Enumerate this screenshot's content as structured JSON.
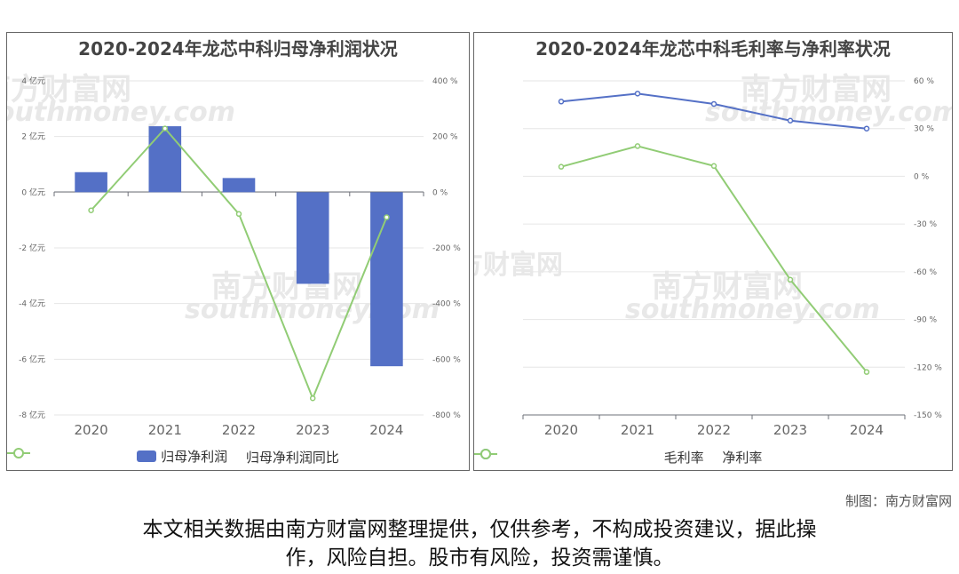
{
  "chart_data": [
    {
      "type": "bar+line",
      "title": "2020-2024年龙芯中科归母净利润状况",
      "categories": [
        "2020",
        "2021",
        "2022",
        "2023",
        "2024"
      ],
      "y_left": {
        "ylim": [
          -8,
          4
        ],
        "ticks": [
          4,
          2,
          0,
          -2,
          -4,
          -6,
          -8
        ],
        "unit": "亿元"
      },
      "y_right": {
        "ylim": [
          -800,
          400
        ],
        "ticks": [
          400,
          200,
          0,
          -200,
          -400,
          -600,
          -800
        ],
        "unit": "%"
      },
      "series": [
        {
          "name": "归母净利润",
          "type": "bar",
          "axis": "left",
          "color": "#5470c6",
          "values": [
            0.72,
            2.37,
            0.51,
            -3.29,
            -6.25
          ]
        },
        {
          "name": "归母净利润同比",
          "type": "line",
          "axis": "right",
          "color": "#91cc75",
          "values": [
            -65,
            229,
            -78,
            -740,
            -90
          ]
        }
      ],
      "legend": "bottom-center",
      "grid": true
    },
    {
      "type": "line",
      "title": "2020-2024年龙芯中科毛利率与净利率状况",
      "categories": [
        "2020",
        "2021",
        "2022",
        "2023",
        "2024"
      ],
      "y_right": {
        "ylim": [
          -150,
          60
        ],
        "ticks": [
          60,
          30,
          0,
          -30,
          -60,
          -90,
          -120,
          -150
        ],
        "unit": "%"
      },
      "series": [
        {
          "name": "毛利率",
          "type": "line",
          "axis": "right",
          "color": "#5470c6",
          "values": [
            47,
            52,
            45.5,
            35,
            30
          ]
        },
        {
          "name": "净利率",
          "type": "line",
          "axis": "right",
          "color": "#91cc75",
          "values": [
            6,
            19,
            6.5,
            -65,
            -123
          ]
        }
      ],
      "legend": "bottom-center",
      "grid": true
    }
  ],
  "watermark": {
    "name": "南方财富网",
    "url": "southmoney.com"
  },
  "footer": {
    "credit": "制图：南方财富网",
    "disclaimer_line1": "本文相关数据由南方财富网整理提供，仅供参考，不构成投资建议，据此操",
    "disclaimer_line2": "作，风险自担。股市有风险，投资需谨慎。"
  }
}
